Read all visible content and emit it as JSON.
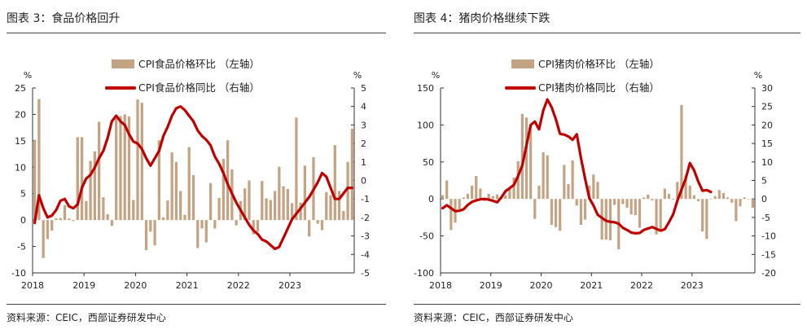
{
  "panels": {
    "left": {
      "title": "图表 3：食品价格回升",
      "source": "资料来源：CEIC，西部证券研发中心"
    },
    "right": {
      "title": "图表 4：猪肉价格继续下跌",
      "source": "资料来源：CEIC，西部证券研发中心"
    }
  },
  "colors": {
    "bar": "#c3a383",
    "line": "#c00000",
    "axis": "#333333"
  },
  "chart_data": [
    {
      "type": "bar+line",
      "title": "食品价格回升",
      "left_unit": "%",
      "right_unit": "%",
      "legend": [
        "CPI食品价格环比 （左轴）",
        "CPI食品价格同比 （右轴）"
      ],
      "ylim_left": [
        -10,
        25
      ],
      "yticks_left": [
        -10,
        -5,
        0,
        5,
        10,
        15,
        20,
        25
      ],
      "ylim_right": [
        -5,
        5
      ],
      "yticks_right": [
        -5,
        -4,
        -3,
        -2,
        -1,
        0,
        1,
        2,
        3,
        4,
        5
      ],
      "xtick_labels": [
        "2018",
        "2019",
        "2020",
        "2021",
        "2022",
        "2023"
      ],
      "series": [
        {
          "name": "CPI食品价格环比 （左轴）",
          "axis": "left",
          "kind": "bar",
          "values": [
            15.2,
            22.9,
            -7.2,
            -3.6,
            -2.0,
            0.3,
            0.4,
            2.8,
            0.3,
            -0.2,
            15.7,
            15.7,
            3.6,
            11.2,
            13.0,
            18.6,
            4.3,
            1.1,
            -1.1,
            19.2,
            19.7,
            20.0,
            19.6,
            3.8,
            22.8,
            22.2,
            -5.7,
            -2.2,
            -4.8,
            15.1,
            0.5,
            3.7,
            12.8,
            11.0,
            5.5,
            1.0,
            13.8,
            8.5,
            -5.3,
            -1.6,
            -4.2,
            7.0,
            -1.6,
            4.2,
            11.6,
            15.1,
            9.6,
            -1.0,
            3.6,
            6.0,
            7.5,
            -2.7,
            -2.2,
            7.4,
            4.1,
            3.8,
            5.5,
            10.1,
            6.4,
            5.9,
            3.2,
            19.4,
            3.3,
            10.3,
            -3.1,
            11.9,
            -0.7,
            -1.9,
            5.3,
            4.7,
            14.2,
            5.5,
            1.7,
            11.0,
            17.3
          ]
        },
        {
          "name": "CPI食品价格同比 （右轴）",
          "axis": "right",
          "kind": "line",
          "values": [
            -2.3,
            -0.8,
            -1.5,
            -2.0,
            -1.9,
            -1.6,
            -1.1,
            -1.0,
            -1.4,
            -1.5,
            -1.3,
            -0.4,
            0.1,
            0.3,
            0.7,
            1.2,
            1.6,
            2.3,
            3.2,
            3.5,
            3.2,
            3.0,
            2.5,
            2.1,
            2.0,
            1.7,
            1.2,
            0.8,
            1.2,
            1.6,
            2.4,
            2.9,
            3.5,
            3.9,
            4.0,
            3.8,
            3.5,
            3.2,
            2.7,
            2.4,
            2.2,
            1.9,
            1.3,
            0.9,
            0.4,
            -0.2,
            -0.7,
            -1.2,
            -1.6,
            -2.0,
            -2.4,
            -2.7,
            -2.9,
            -3.2,
            -3.3,
            -3.5,
            -3.7,
            -3.6,
            -3.1,
            -2.6,
            -2.1,
            -1.8,
            -1.5,
            -1.2,
            -0.9,
            -0.5,
            -0.1,
            0.4,
            0.2,
            -0.4,
            -1.0,
            -1.0,
            -0.7,
            -0.4,
            -0.4
          ]
        }
      ]
    },
    {
      "type": "bar+line",
      "title": "猪肉价格继续下跌",
      "left_unit": "%",
      "right_unit": "%",
      "legend": [
        "CPI猪肉价格环比 （左轴）",
        "CPI猪肉价格同比 （右轴）"
      ],
      "ylim_left": [
        -100,
        150
      ],
      "yticks_left": [
        -100,
        -50,
        0,
        50,
        100,
        150
      ],
      "ylim_right": [
        -20,
        30
      ],
      "yticks_right": [
        -20,
        -15,
        -10,
        -5,
        0,
        5,
        10,
        15,
        20,
        25,
        30
      ],
      "xtick_labels": [
        "2018",
        "2019",
        "2020",
        "2021",
        "2022",
        "2023"
      ],
      "series": [
        {
          "name": "CPI猪肉价格环比 （左轴）",
          "axis": "left",
          "kind": "bar",
          "values": [
            5,
            25,
            -42,
            -32,
            -14,
            2,
            7,
            18,
            31,
            14,
            -3,
            7,
            4,
            6,
            2,
            5,
            14,
            29,
            51,
            115,
            110,
            98,
            -27,
            18,
            63,
            59,
            -35,
            -38,
            -43,
            46,
            20,
            52,
            -9,
            -35,
            -28,
            18,
            33,
            23,
            -55,
            -55,
            -56,
            -8,
            -68,
            -7,
            -12,
            -21,
            -22,
            -39,
            2,
            6,
            -2,
            -48,
            -43,
            14,
            7,
            -1,
            23,
            127,
            32,
            18,
            5,
            -3,
            -44,
            -54,
            0,
            4,
            12,
            8,
            2,
            -5,
            -30,
            -10,
            2,
            0,
            -12
          ]
        },
        {
          "name": "CPI猪肉价格同比 （右轴）",
          "axis": "right",
          "kind": "line",
          "values": [
            -2.5,
            -1.7,
            -2.5,
            -3.3,
            -3.2,
            -2.8,
            -1.6,
            -0.8,
            -0.4,
            -0.1,
            0.0,
            -0.2,
            -0.5,
            -0.9,
            0.4,
            2.1,
            2.9,
            3.8,
            6.2,
            9.1,
            14.5,
            20.0,
            20.9,
            18.8,
            23.9,
            26.9,
            24.8,
            21.6,
            17.6,
            17.4,
            16.9,
            16.0,
            17.5,
            11.1,
            5.4,
            0.2,
            -1.8,
            -4.3,
            -5.1,
            -5.9,
            -6.2,
            -6.3,
            -6.7,
            -7.8,
            -8.4,
            -9.1,
            -9.3,
            -9.2,
            -8.4,
            -8.0,
            -7.6,
            -8.1,
            -8.6,
            -8.2,
            -6.3,
            -4.2,
            -0.5,
            2.5,
            5.5,
            9.7,
            7.7,
            4.7,
            2.2,
            2.4,
            1.9
          ]
        }
      ]
    }
  ]
}
